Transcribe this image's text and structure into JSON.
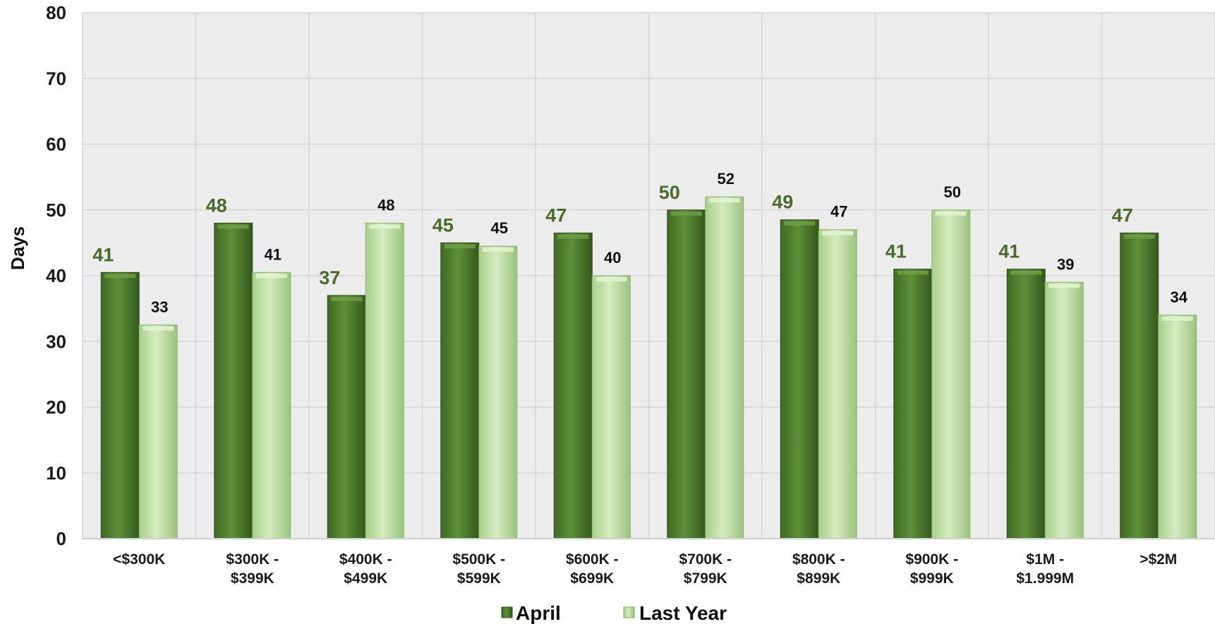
{
  "chart_data": {
    "type": "bar",
    "ylabel": "Days",
    "xlabel": "",
    "ylim": [
      0,
      80
    ],
    "yticks": [
      "0",
      "10",
      "20",
      "30",
      "40",
      "50",
      "60",
      "70",
      "80"
    ],
    "grid": true,
    "legend_position": "bottom",
    "categories": [
      [
        "<$300K"
      ],
      [
        "$300K -",
        "$399K"
      ],
      [
        "$400K -",
        "$499K"
      ],
      [
        "$500K -",
        "$599K"
      ],
      [
        "$600K -",
        "$699K"
      ],
      [
        "$700K -",
        "$799K"
      ],
      [
        "$800K -",
        "$899K"
      ],
      [
        "$900K -",
        "$999K"
      ],
      [
        "$1M -",
        "$1.999M"
      ],
      [
        ">$2M"
      ]
    ],
    "series": [
      {
        "name": "April",
        "color": "#5a8a35",
        "label_color": "#4a6b2a",
        "values": [
          40.5,
          48,
          37,
          45,
          46.5,
          50,
          48.5,
          41,
          41,
          46.5
        ],
        "labels": [
          "41",
          "48",
          "37",
          "45",
          "47",
          "50",
          "49",
          "41",
          "41",
          "47"
        ]
      },
      {
        "name": "Last Year",
        "color": "#c6e3ad",
        "label_color": "#111111",
        "values": [
          32.5,
          40.5,
          48,
          44.5,
          40,
          52,
          47,
          50,
          39,
          34
        ],
        "labels": [
          "33",
          "41",
          "48",
          "45",
          "40",
          "52",
          "47",
          "50",
          "39",
          "34"
        ]
      }
    ]
  }
}
